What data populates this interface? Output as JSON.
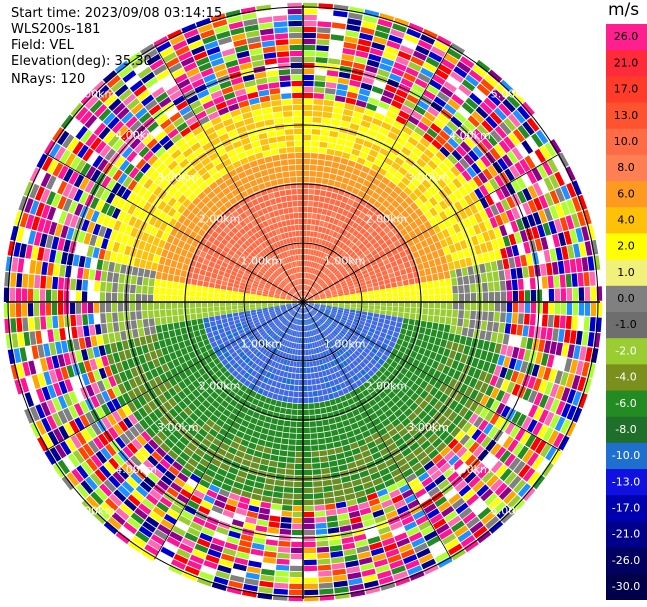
{
  "header": {
    "start_time": "Start time: 2023/09/08 03:14:15",
    "instrument": "WLS200s-181",
    "field": "Field: VEL",
    "elevation": "Elevation(deg): 35.30",
    "nrays": "NRays: 120"
  },
  "colorbar": {
    "unit": "m/s",
    "ticks": [
      "26.0",
      "21.0",
      "17.0",
      "13.0",
      "10.0",
      "8.0",
      "6.0",
      "4.0",
      "2.0",
      "1.0",
      "0.0",
      "-1.0",
      "-2.0",
      "-4.0",
      "-6.0",
      "-8.0",
      "-10.0",
      "-13.0",
      "-17.0",
      "-21.0",
      "-26.0",
      "-30.0"
    ],
    "colors": [
      "#ff1f8f",
      "#ff2a3a",
      "#ff3b2a",
      "#ff5330",
      "#ff6b45",
      "#ff7f55",
      "#ff9a20",
      "#ffc107",
      "#ffff00",
      "#f0f07a",
      "#808080",
      "#6e6e6e",
      "#9acd32",
      "#7a8f1c",
      "#228b22",
      "#1f6f2a",
      "#1e6fd0",
      "#1010e0",
      "#0000b0",
      "#00008b",
      "#000060",
      "#00004a"
    ]
  },
  "range_rings": {
    "labels": [
      "1.00km",
      "2.00km",
      "3.00km",
      "4.00km",
      "5.00km"
    ]
  },
  "noise_palette": [
    "#ff1493",
    "#ff1493",
    "#0000cd",
    "#00008b",
    "#ffff00",
    "#ffa500",
    "#ff0000",
    "#228b22",
    "#9acd32",
    "#808080",
    "#ffffff",
    "#1e90ff",
    "#8b008b",
    "#ff69b4",
    "#ff4500",
    "#adff2f"
  ]
}
